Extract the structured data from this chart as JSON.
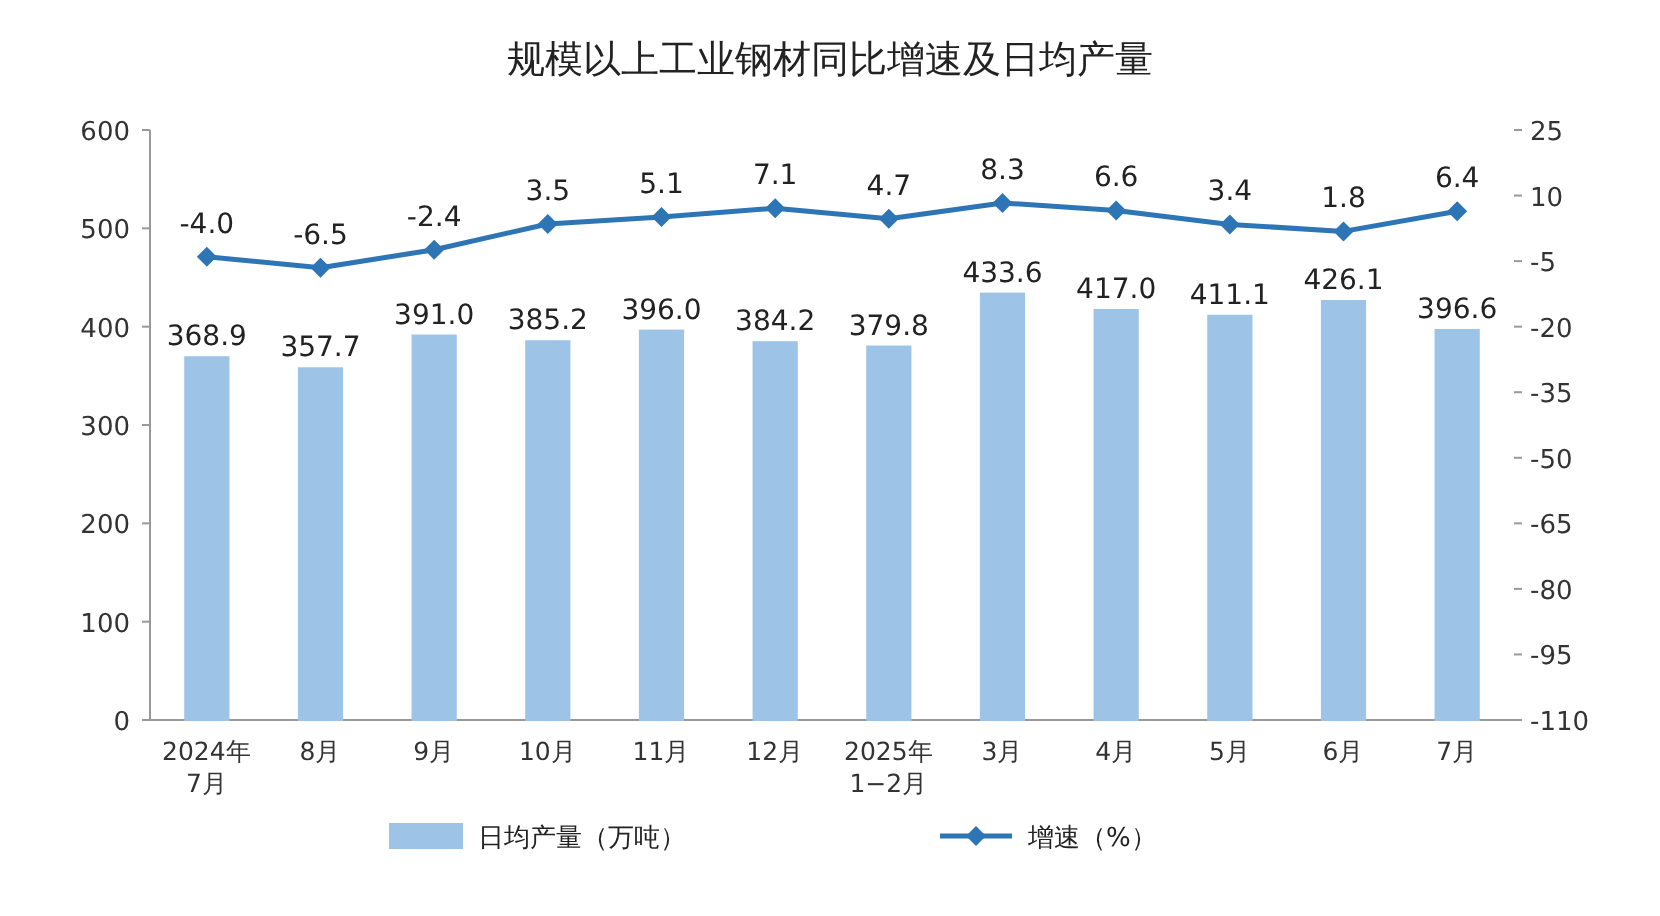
{
  "chart_data": {
    "type": "bar",
    "title": "规模以上工业钢材同比增速及日均产量",
    "categories": [
      "2024年\n7月",
      "8月",
      "9月",
      "10月",
      "11月",
      "12月",
      "2025年\n1−2月",
      "3月",
      "4月",
      "5月",
      "6月",
      "7月"
    ],
    "series": [
      {
        "name": "日均产量（万吨）",
        "color": "#9dc3e6",
        "values": [
          368.9,
          357.7,
          391.0,
          385.2,
          396.0,
          384.2,
          379.8,
          433.6,
          417.0,
          411.1,
          426.1,
          396.6
        ],
        "value_labels": [
          "368.9",
          "357.7",
          "391.0",
          "385.2",
          "396.0",
          "384.2",
          "379.8",
          "433.6",
          "417.0",
          "411.1",
          "426.1",
          "396.6"
        ]
      },
      {
        "name": "增速（%）",
        "type": "line",
        "axis": "y2",
        "color": "#2e75b6",
        "values": [
          -4.0,
          -6.5,
          -2.4,
          3.5,
          5.1,
          7.1,
          4.7,
          8.3,
          6.6,
          3.4,
          1.8,
          6.4
        ],
        "value_labels": [
          "-4.0",
          "-6.5",
          "-2.4",
          "3.5",
          "5.1",
          "7.1",
          "4.7",
          "8.3",
          "6.6",
          "3.4",
          "1.8",
          "6.4"
        ]
      }
    ],
    "ylim": [
      0,
      600
    ],
    "yticks": [
      0,
      100,
      200,
      300,
      400,
      500,
      600
    ],
    "y2lim": [
      -110,
      25
    ],
    "y2ticks": [
      -110,
      -95,
      -80,
      -65,
      -50,
      -35,
      -20,
      -5,
      10,
      25
    ],
    "marker": "diamond",
    "legend": "bottom"
  }
}
